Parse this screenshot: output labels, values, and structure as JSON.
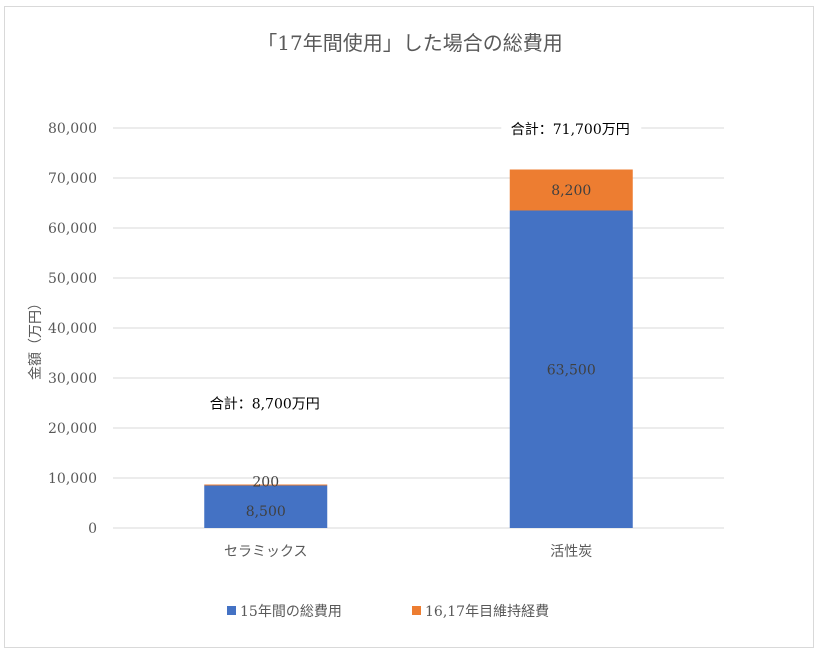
{
  "chart_data": {
    "type": "bar",
    "stacked": true,
    "title": "「17年間使用」した場合の総費用",
    "xlabel": "",
    "ylabel": "金額（万円）",
    "categories": [
      "セラミックス",
      "活性炭"
    ],
    "series": [
      {
        "name": "15年間の総費用",
        "values": [
          8500,
          63500
        ],
        "color": "#4472C4",
        "labels": [
          "8,500",
          "63,500"
        ]
      },
      {
        "name": "16,17年目維持経費",
        "values": [
          200,
          8200
        ],
        "color": "#ED7D31",
        "labels": [
          "200",
          "8,200"
        ]
      }
    ],
    "totals": [
      "合計：8,700万円",
      "合計：71,700万円"
    ],
    "ylim": [
      0,
      80000
    ],
    "yticks": [
      0,
      10000,
      20000,
      30000,
      40000,
      50000,
      60000,
      70000,
      80000
    ],
    "ytick_labels": [
      "0",
      "10,000",
      "20,000",
      "30,000",
      "40,000",
      "50,000",
      "60,000",
      "70,000",
      "80,000"
    ],
    "grid": true,
    "legend_position": "bottom"
  }
}
